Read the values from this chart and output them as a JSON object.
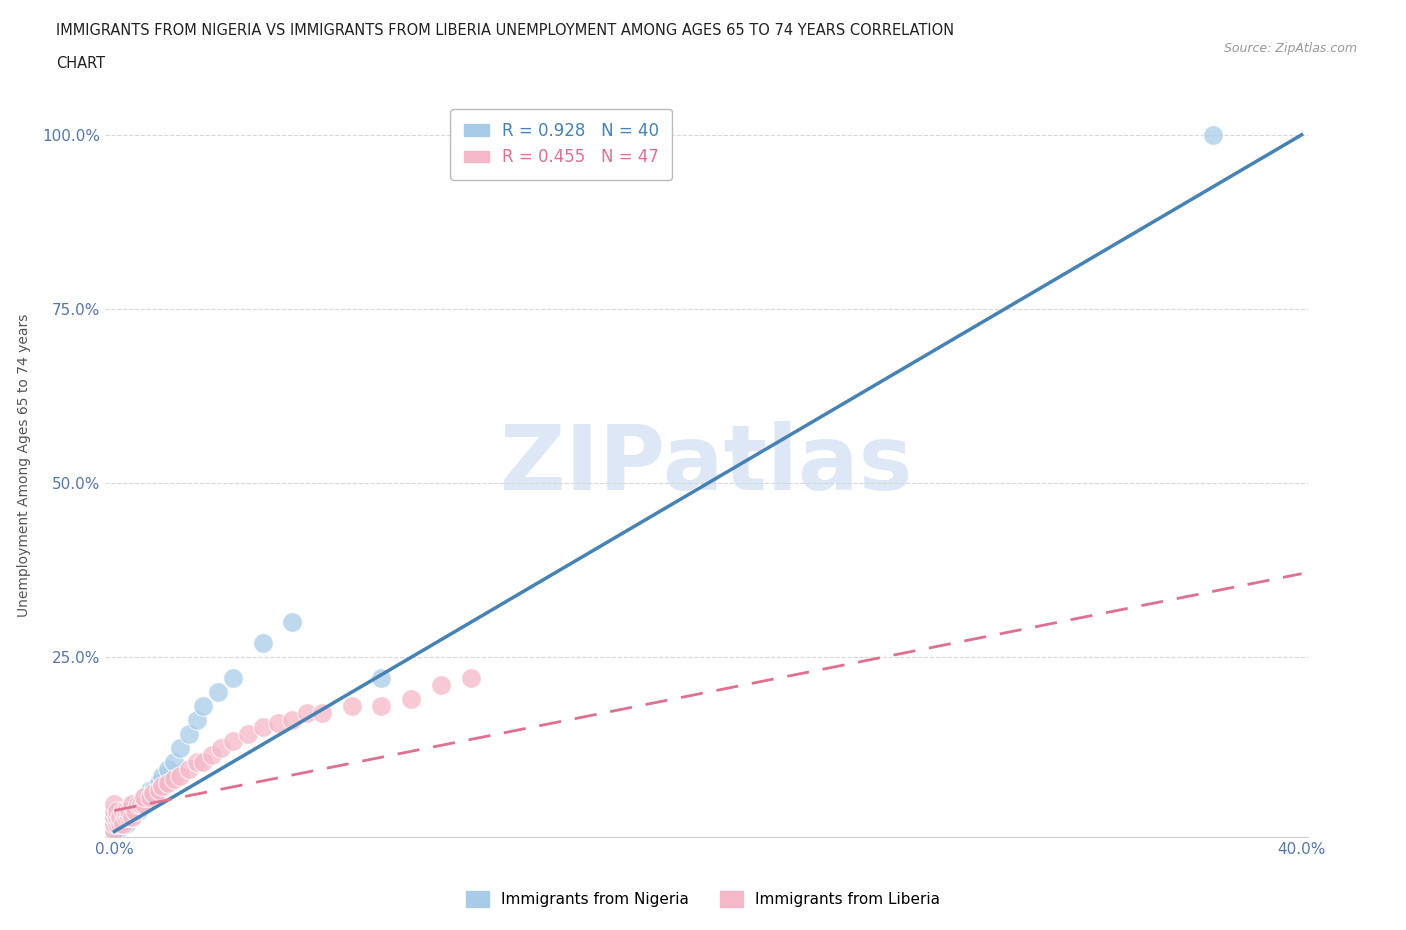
{
  "title_line1": "IMMIGRANTS FROM NIGERIA VS IMMIGRANTS FROM LIBERIA UNEMPLOYMENT AMONG AGES 65 TO 74 YEARS CORRELATION",
  "title_line2": "CHART",
  "source": "Source: ZipAtlas.com",
  "ylabel": "Unemployment Among Ages 65 to 74 years",
  "xlim": [
    -0.003,
    0.402
  ],
  "ylim": [
    -0.008,
    1.06
  ],
  "xtick_positions": [
    0.0,
    0.05,
    0.1,
    0.15,
    0.2,
    0.25,
    0.3,
    0.35,
    0.4
  ],
  "xtick_labels": [
    "0.0%",
    "",
    "",
    "",
    "",
    "",
    "",
    "",
    "40.0%"
  ],
  "ytick_values": [
    0.25,
    0.5,
    0.75,
    1.0
  ],
  "ytick_labels": [
    "25.0%",
    "50.0%",
    "75.0%",
    "100.0%"
  ],
  "nigeria_R": 0.928,
  "nigeria_N": 40,
  "liberia_R": 0.455,
  "liberia_N": 47,
  "nigeria_color": "#a8cce8",
  "liberia_color": "#f5b8c8",
  "nigeria_line_color": "#4682b4",
  "liberia_line_color": "#e07090",
  "watermark": "ZIPatlas",
  "watermark_color": "#c8d8f0",
  "nigeria_scatter_x": [
    0.0,
    0.0,
    0.0,
    0.0,
    0.001,
    0.001,
    0.001,
    0.002,
    0.002,
    0.003,
    0.003,
    0.004,
    0.004,
    0.005,
    0.005,
    0.006,
    0.007,
    0.007,
    0.008,
    0.008,
    0.009,
    0.01,
    0.01,
    0.011,
    0.012,
    0.013,
    0.015,
    0.016,
    0.018,
    0.02,
    0.022,
    0.025,
    0.028,
    0.03,
    0.035,
    0.04,
    0.05,
    0.06,
    0.09,
    0.37
  ],
  "nigeria_scatter_y": [
    0.0,
    0.01,
    0.02,
    0.03,
    0.0,
    0.01,
    0.02,
    0.01,
    0.02,
    0.01,
    0.02,
    0.01,
    0.03,
    0.02,
    0.03,
    0.02,
    0.03,
    0.04,
    0.03,
    0.04,
    0.04,
    0.04,
    0.05,
    0.05,
    0.06,
    0.06,
    0.07,
    0.08,
    0.09,
    0.1,
    0.12,
    0.14,
    0.16,
    0.18,
    0.2,
    0.22,
    0.27,
    0.3,
    0.22,
    1.0
  ],
  "liberia_scatter_x": [
    0.0,
    0.0,
    0.0,
    0.0,
    0.0,
    0.001,
    0.001,
    0.001,
    0.002,
    0.002,
    0.003,
    0.003,
    0.004,
    0.004,
    0.005,
    0.005,
    0.006,
    0.006,
    0.007,
    0.008,
    0.009,
    0.01,
    0.01,
    0.012,
    0.013,
    0.015,
    0.016,
    0.018,
    0.02,
    0.022,
    0.025,
    0.028,
    0.03,
    0.033,
    0.036,
    0.04,
    0.045,
    0.05,
    0.055,
    0.06,
    0.065,
    0.07,
    0.08,
    0.09,
    0.1,
    0.11,
    0.12
  ],
  "liberia_scatter_y": [
    0.0,
    0.01,
    0.02,
    0.03,
    0.04,
    0.01,
    0.02,
    0.03,
    0.01,
    0.02,
    0.01,
    0.03,
    0.02,
    0.03,
    0.02,
    0.03,
    0.02,
    0.04,
    0.03,
    0.04,
    0.04,
    0.04,
    0.05,
    0.05,
    0.055,
    0.06,
    0.065,
    0.07,
    0.075,
    0.08,
    0.09,
    0.1,
    0.1,
    0.11,
    0.12,
    0.13,
    0.14,
    0.15,
    0.155,
    0.16,
    0.17,
    0.17,
    0.18,
    0.18,
    0.19,
    0.21,
    0.22
  ],
  "nigeria_line_x": [
    0.0,
    0.4
  ],
  "nigeria_line_y": [
    0.0,
    1.0
  ],
  "liberia_line_x": [
    0.0,
    0.4
  ],
  "liberia_line_y": [
    0.03,
    0.37
  ],
  "background_color": "#ffffff",
  "grid_color": "#d8d8d8"
}
